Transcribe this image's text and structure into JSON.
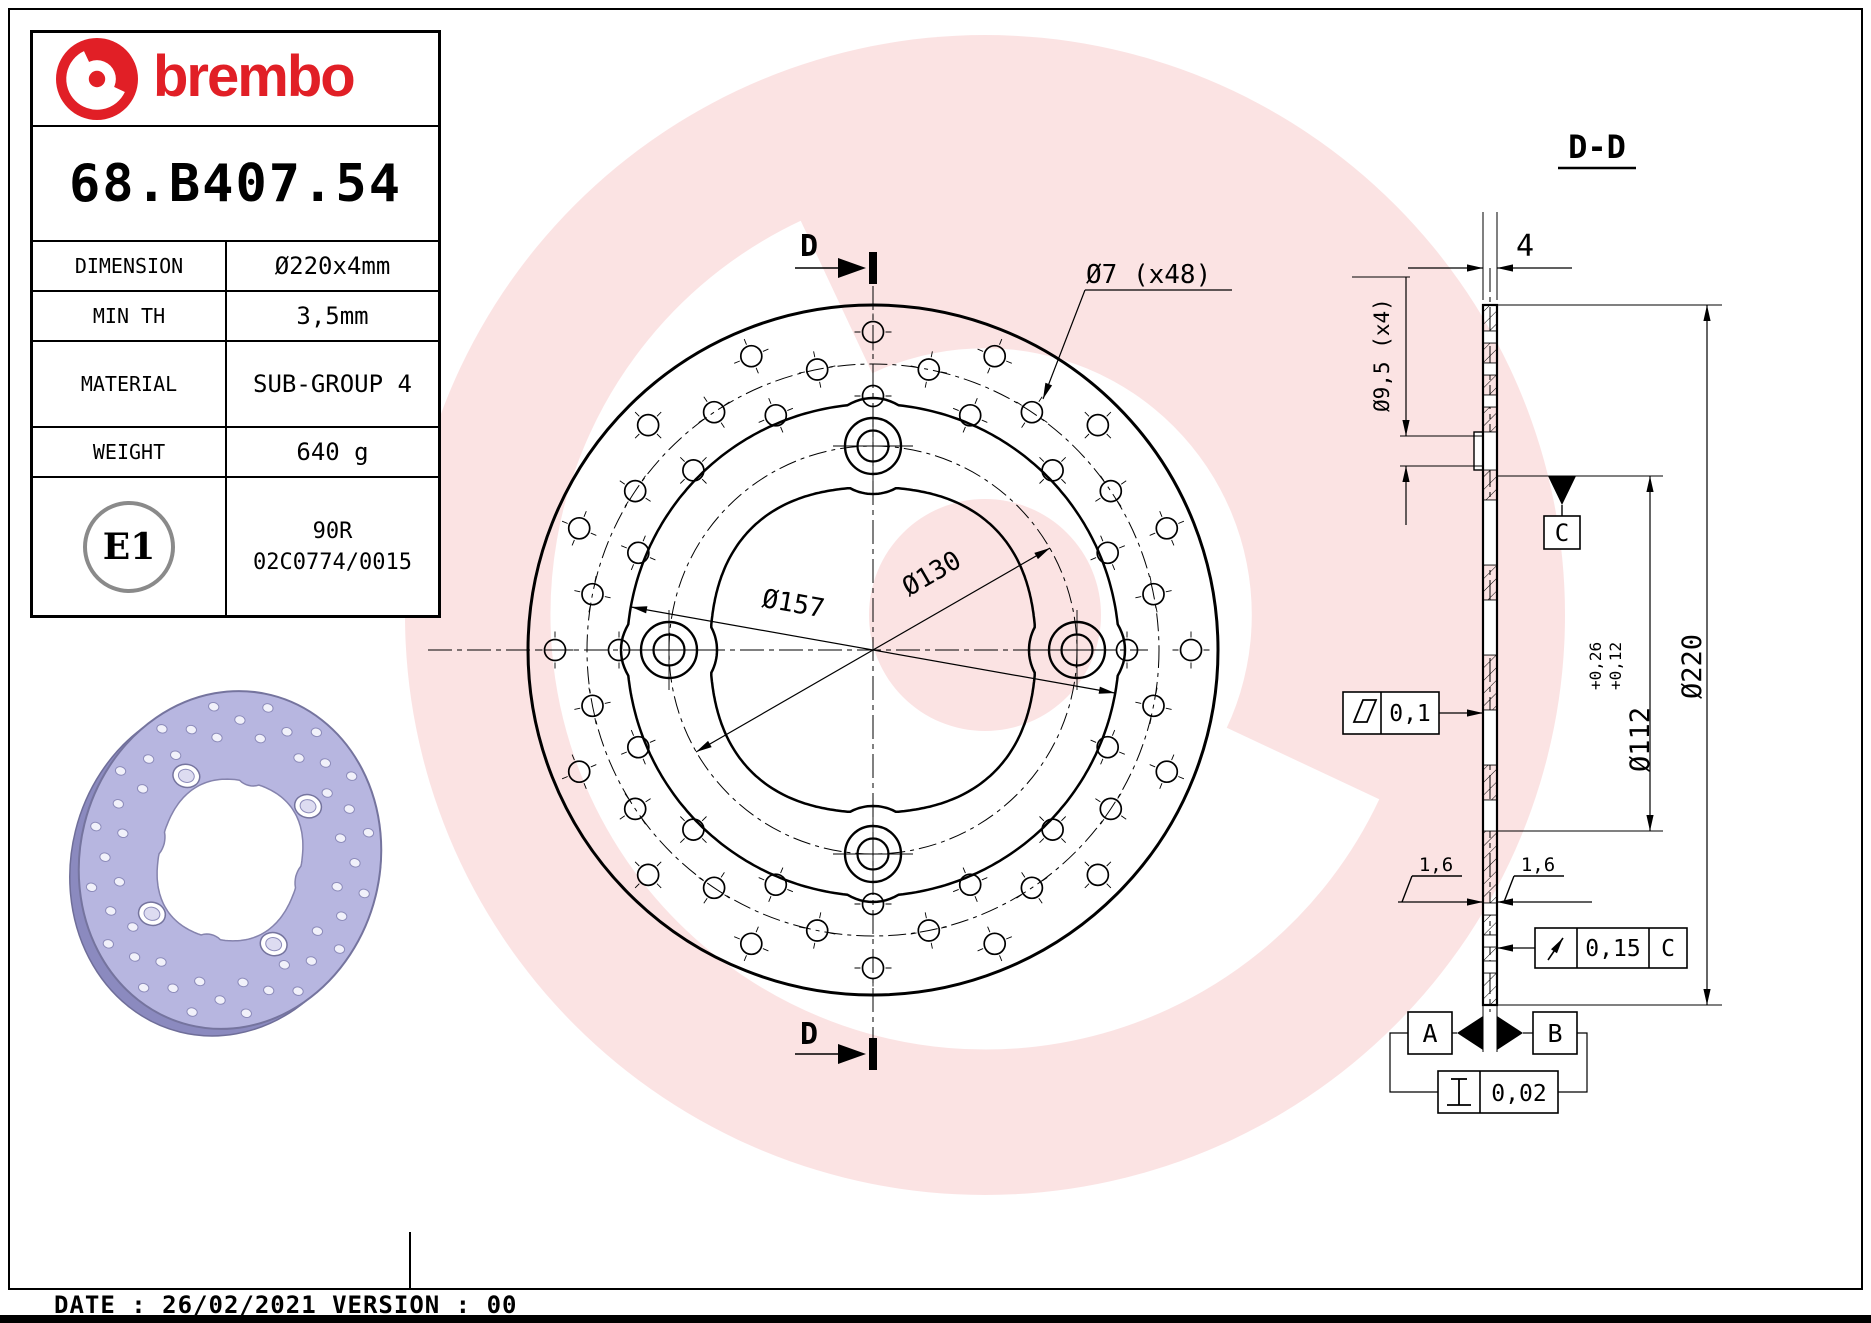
{
  "brand": {
    "wordmark": "brembo"
  },
  "colors": {
    "brand_red": "#e11f26",
    "render_body": "#b7b6e0",
    "render_edge": "#75749e",
    "line": "#000000"
  },
  "title_block": {
    "part_number": "68.B407.54",
    "rows": [
      {
        "label": "DIMENSION",
        "value": "Ø220x4mm"
      },
      {
        "label": "MIN TH",
        "value": "3,5mm"
      },
      {
        "label": "MATERIAL",
        "value": "SUB-GROUP 4"
      },
      {
        "label": "WEIGHT",
        "value": "640 g"
      }
    ],
    "homologation": {
      "badge": "E1",
      "approval_line1": "90R",
      "approval_line2": "02C0774/0015"
    }
  },
  "front_view": {
    "section_cut_top": "D",
    "section_cut_bottom": "D",
    "holes_dim": "Ø7 (x48)",
    "bolt_circle_dim": "Ø130",
    "band_inner_dim": "Ø157"
  },
  "section_view": {
    "title": "D-D",
    "thickness_dim": "4",
    "pin_hole_dim": "Ø9,5 (x4)",
    "hub_dim": "Ø112",
    "hub_tol_upper": "+0,26",
    "hub_tol_lower": "+0,12",
    "outer_dim": "Ø220",
    "flatness_value": "0,1",
    "roughness_left": "1,6",
    "roughness_right": "1,6",
    "runout_value": "0,15",
    "runout_datum": "C",
    "datum_a": "A",
    "datum_b": "B",
    "datum_c": "C",
    "parallelism_value": "0,02"
  },
  "footer": {
    "note": "DATE : 26/02/2021 VERSION : 00"
  }
}
